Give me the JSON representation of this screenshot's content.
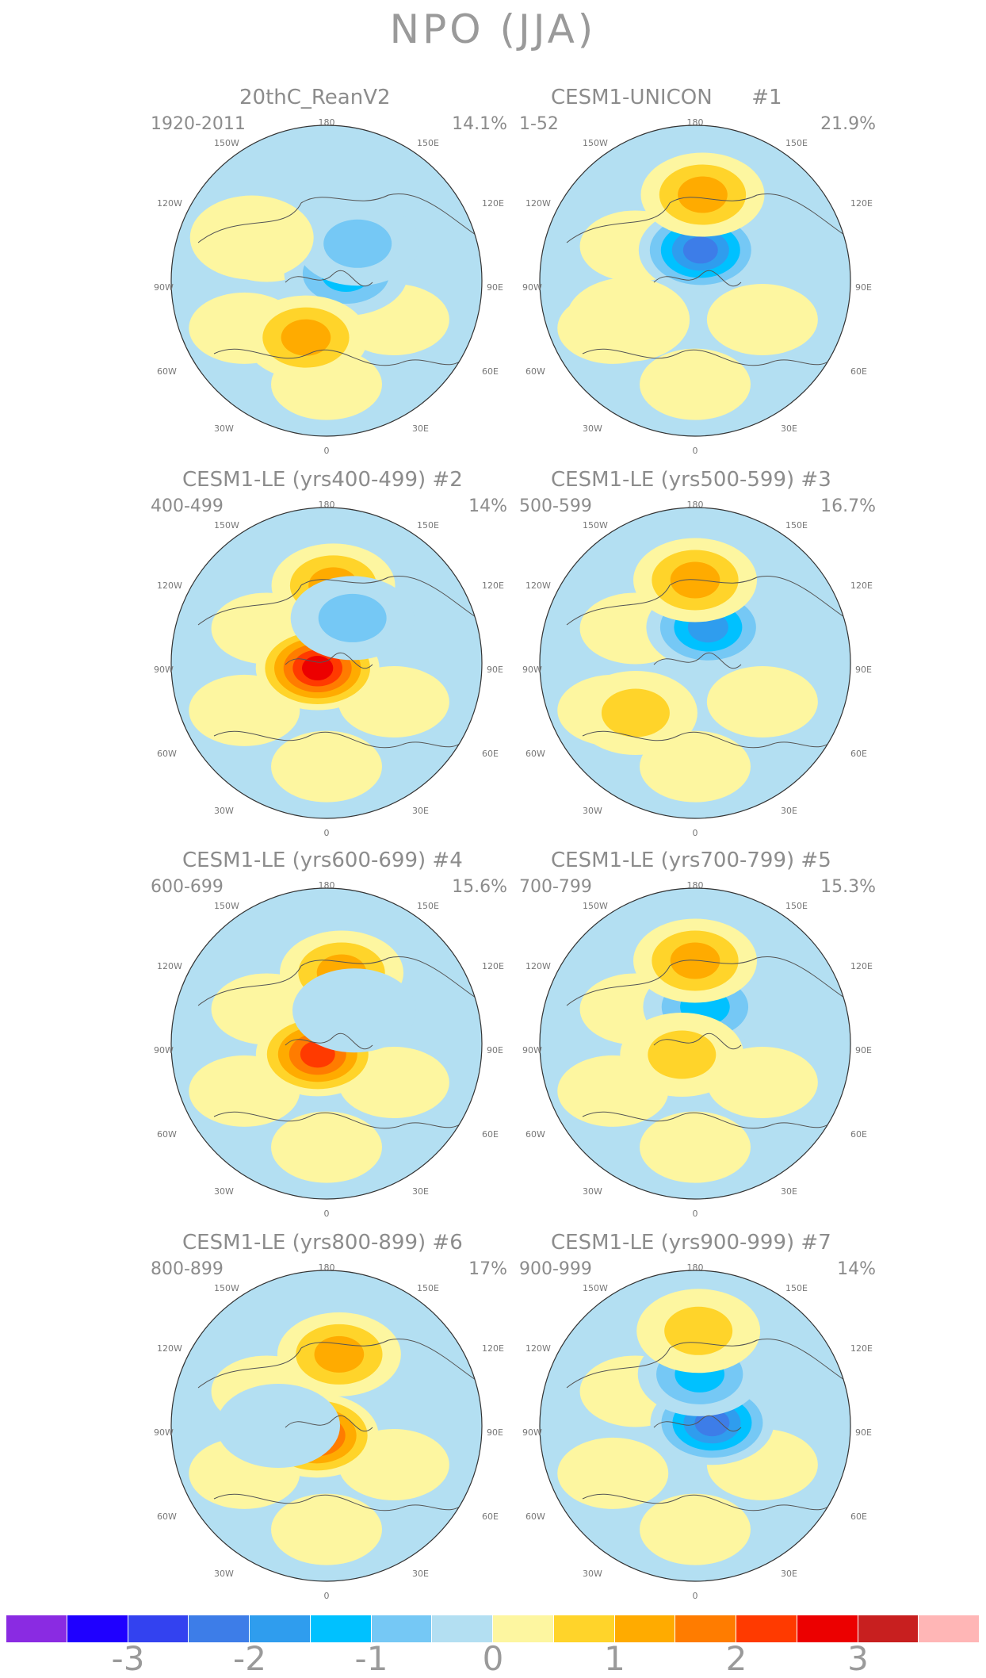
{
  "title": "NPO (JJA)",
  "panels": [
    {
      "title": "20thC_ReanV2",
      "period": "1920-2011",
      "percent": "14.1%",
      "blobs": [
        {
          "lat": 78,
          "lon": 110,
          "kind": "neg",
          "v": -1.3
        },
        {
          "lat": 62,
          "lon": 140,
          "kind": "neg",
          "v": -0.7
        },
        {
          "lat": 55,
          "lon": -20,
          "kind": "pos",
          "v": 1.1
        },
        {
          "lat": 40,
          "lon": -120,
          "kind": "pos",
          "v": 0.5
        }
      ]
    },
    {
      "title": "CESM1-UNICON      #1",
      "period": "1-52",
      "percent": "21.9%",
      "blobs": [
        {
          "lat": 72,
          "lon": 170,
          "kind": "neg",
          "v": -2.2
        },
        {
          "lat": 40,
          "lon": 175,
          "kind": "pos",
          "v": 1.1
        },
        {
          "lat": 45,
          "lon": -60,
          "kind": "pos",
          "v": 0.5
        }
      ]
    },
    {
      "title": "CESM1-LE (yrs400-499) #2",
      "period": "400-499",
      "percent": "14%",
      "blobs": [
        {
          "lat": 84,
          "lon": -60,
          "kind": "pos",
          "v": 2.6
        },
        {
          "lat": 45,
          "lon": 175,
          "kind": "pos",
          "v": 1.3
        },
        {
          "lat": 60,
          "lon": 150,
          "kind": "neg",
          "v": -0.6
        }
      ]
    },
    {
      "title": "CESM1-LE (yrs500-599) #3",
      "period": "500-599",
      "percent": "16.7%",
      "blobs": [
        {
          "lat": 68,
          "lon": 160,
          "kind": "neg",
          "v": -1.6
        },
        {
          "lat": 42,
          "lon": 180,
          "kind": "pos",
          "v": 1.3
        },
        {
          "lat": 45,
          "lon": -50,
          "kind": "pos",
          "v": 0.6
        }
      ]
    },
    {
      "title": "CESM1-LE (yrs600-699) #4",
      "period": "600-699",
      "percent": "15.6%",
      "blobs": [
        {
          "lat": 82,
          "lon": -40,
          "kind": "pos",
          "v": 2.4
        },
        {
          "lat": 48,
          "lon": 168,
          "kind": "pos",
          "v": 1.2
        },
        {
          "lat": 65,
          "lon": 140,
          "kind": "neg",
          "v": -0.5
        }
      ]
    },
    {
      "title": "CESM1-LE (yrs700-799) #5",
      "period": "700-799",
      "percent": "15.3%",
      "blobs": [
        {
          "lat": 68,
          "lon": 165,
          "kind": "neg",
          "v": -1.4
        },
        {
          "lat": 42,
          "lon": 180,
          "kind": "pos",
          "v": 1.2
        },
        {
          "lat": 80,
          "lon": -50,
          "kind": "pos",
          "v": 0.9
        }
      ]
    },
    {
      "title": "CESM1-LE (yrs800-899) #6",
      "period": "800-899",
      "percent": "17%",
      "blobs": [
        {
          "lat": 82,
          "lon": -45,
          "kind": "pos",
          "v": 2.3
        },
        {
          "lat": 48,
          "lon": 170,
          "kind": "pos",
          "v": 1.5
        },
        {
          "lat": 62,
          "lon": -90,
          "kind": "neg",
          "v": -0.5
        }
      ]
    },
    {
      "title": "CESM1-LE (yrs900-999) #7",
      "period": "900-999",
      "percent": "14%",
      "blobs": [
        {
          "lat": 80,
          "lon": 100,
          "kind": "neg",
          "v": -2.1
        },
        {
          "lat": 60,
          "lon": 175,
          "kind": "neg",
          "v": -1.1
        },
        {
          "lat": 35,
          "lon": 178,
          "kind": "pos",
          "v": 0.6
        }
      ]
    }
  ],
  "map_labels": {
    "top": "180",
    "top_left": "150W",
    "top_right": "150E",
    "upper_left": "120W",
    "upper_right": "120E",
    "mid_left": "90W",
    "mid_right": "90E",
    "lower_left": "60W",
    "lower_right": "60E",
    "bottom_left": "30W",
    "bottom_right": "30E",
    "bottom": "0"
  },
  "colorbar": {
    "colors": [
      "#8a2be2",
      "#1f00ff",
      "#3342f0",
      "#3d7de8",
      "#2f9dee",
      "#00c1ff",
      "#75c8f5",
      "#b3dff2",
      "#fdf6a0",
      "#ffd42a",
      "#ffab00",
      "#ff7c00",
      "#ff3a00",
      "#ec0000",
      "#c81f1f",
      "#ffb6b6"
    ],
    "labels": [
      "-3",
      "-2",
      "-1",
      "0",
      "1",
      "2",
      "3"
    ]
  }
}
